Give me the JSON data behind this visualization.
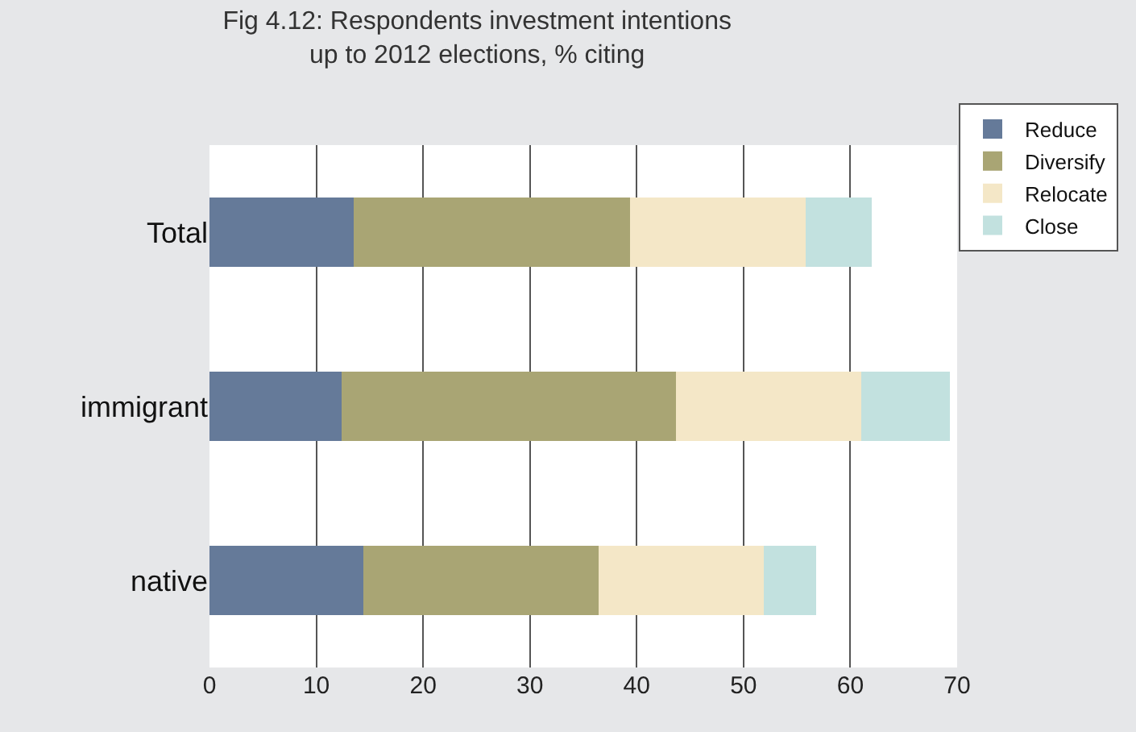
{
  "chart_data": {
    "type": "bar",
    "orientation": "horizontal",
    "stacked": true,
    "title": "Fig 4.12: Respondents investment intentions\nup to 2012 elections, % citing",
    "categories": [
      "Total",
      "immigrant",
      "native"
    ],
    "series": [
      {
        "name": "Reduce",
        "color": "#657a99",
        "values": [
          13.5,
          12.4,
          14.4
        ]
      },
      {
        "name": "Diversify",
        "color": "#a9a574",
        "values": [
          25.9,
          31.3,
          22.0
        ]
      },
      {
        "name": "Relocate",
        "color": "#f4e7c7",
        "values": [
          16.4,
          17.3,
          15.5
        ]
      },
      {
        "name": "Close",
        "color": "#c2e1df",
        "values": [
          6.2,
          8.3,
          4.9
        ]
      }
    ],
    "xlim": [
      0,
      70
    ],
    "xticks": [
      0,
      10,
      20,
      30,
      40,
      50,
      60,
      70
    ],
    "grid": "x",
    "legend": "top right"
  }
}
